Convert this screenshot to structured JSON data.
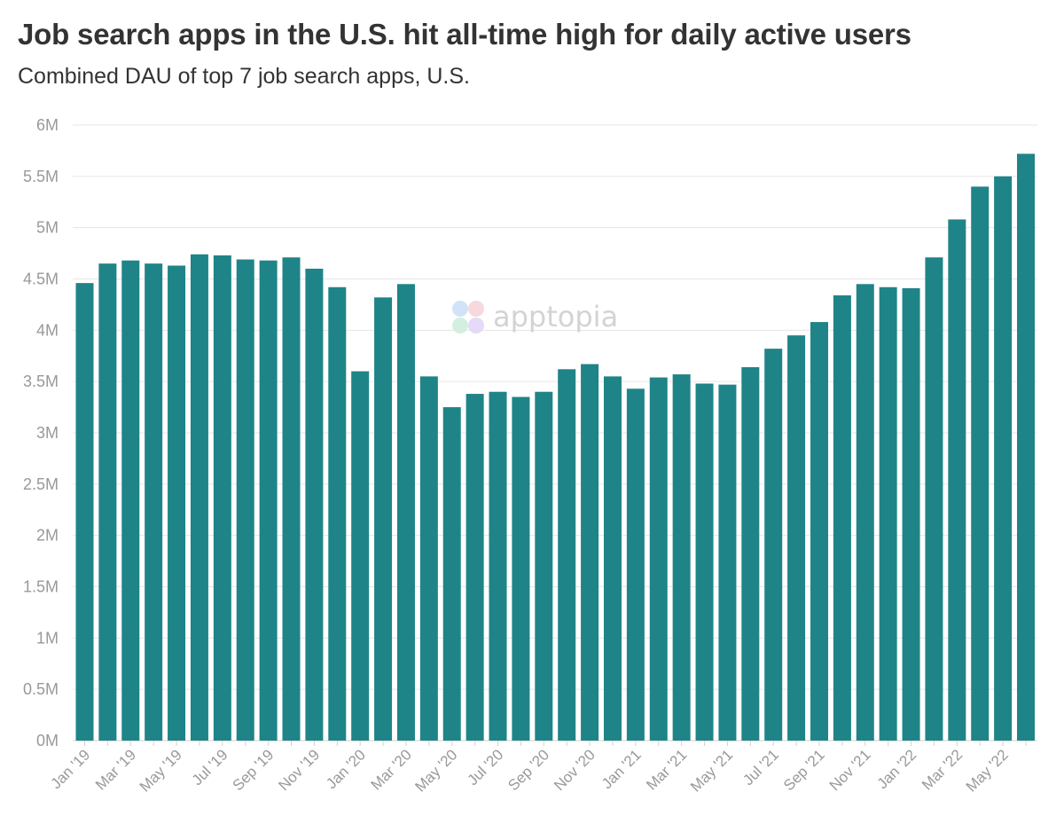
{
  "title": "Job search apps in the U.S. hit all-time high for daily active users",
  "subtitle": "Combined DAU of top 7 job search apps, U.S.",
  "watermark": {
    "text": "apptopia",
    "icon": "apptopia-petal-logo-icon"
  },
  "colors": {
    "bar": "#1f8487",
    "grid": "#e6e6e6",
    "tick_text": "#999999",
    "title_text": "#333333"
  },
  "chart_data": {
    "type": "bar",
    "title": "Job search apps in the U.S. hit all-time high for daily active users",
    "subtitle": "Combined DAU of top 7 job search apps, U.S.",
    "xlabel": "",
    "ylabel": "",
    "ylim": [
      0,
      6000000
    ],
    "grid": true,
    "yticks": [
      "0M",
      "0.5M",
      "1M",
      "1.5M",
      "2M",
      "2.5M",
      "3M",
      "3.5M",
      "4M",
      "4.5M",
      "5M",
      "5.5M",
      "6M"
    ],
    "categories": [
      "Jan '19",
      "Feb '19",
      "Mar '19",
      "Apr '19",
      "May '19",
      "Jun '19",
      "Jul '19",
      "Aug '19",
      "Sep '19",
      "Oct '19",
      "Nov '19",
      "Dec '19",
      "Jan '20",
      "Feb '20",
      "Mar '20",
      "Apr '20",
      "May '20",
      "Jun '20",
      "Jul '20",
      "Aug '20",
      "Sep '20",
      "Oct '20",
      "Nov '20",
      "Dec '20",
      "Jan '21",
      "Feb '21",
      "Mar '21",
      "Apr '21",
      "May '21",
      "Jun '21",
      "Jul '21",
      "Aug '21",
      "Sep '21",
      "Oct '21",
      "Nov '21",
      "Dec '21",
      "Jan '22",
      "Feb '22",
      "Mar '22",
      "Apr '22",
      "May '22",
      "Jun '22"
    ],
    "xtick_labels": [
      "Jan '19",
      "",
      "Mar '19",
      "",
      "May '19",
      "",
      "Jul '19",
      "",
      "Sep '19",
      "",
      "Nov '19",
      "",
      "Jan '20",
      "",
      "Mar '20",
      "",
      "May '20",
      "",
      "Jul '20",
      "",
      "Sep '20",
      "",
      "Nov '20",
      "",
      "Jan '21",
      "",
      "Mar '21",
      "",
      "May '21",
      "",
      "Jul '21",
      "",
      "Sep '21",
      "",
      "Nov '21",
      "",
      "Jan '22",
      "",
      "Mar '22",
      "",
      "May '22",
      ""
    ],
    "values": [
      4460000,
      4650000,
      4680000,
      4650000,
      4630000,
      4740000,
      4730000,
      4690000,
      4680000,
      4710000,
      4600000,
      4420000,
      3600000,
      4320000,
      4450000,
      3550000,
      3250000,
      3380000,
      3400000,
      3350000,
      3400000,
      3620000,
      3670000,
      3550000,
      3430000,
      3540000,
      3570000,
      3480000,
      3470000,
      3640000,
      3820000,
      3950000,
      4080000,
      4340000,
      4450000,
      4420000,
      4410000,
      4710000,
      5080000,
      5400000,
      5500000,
      5720000
    ]
  }
}
